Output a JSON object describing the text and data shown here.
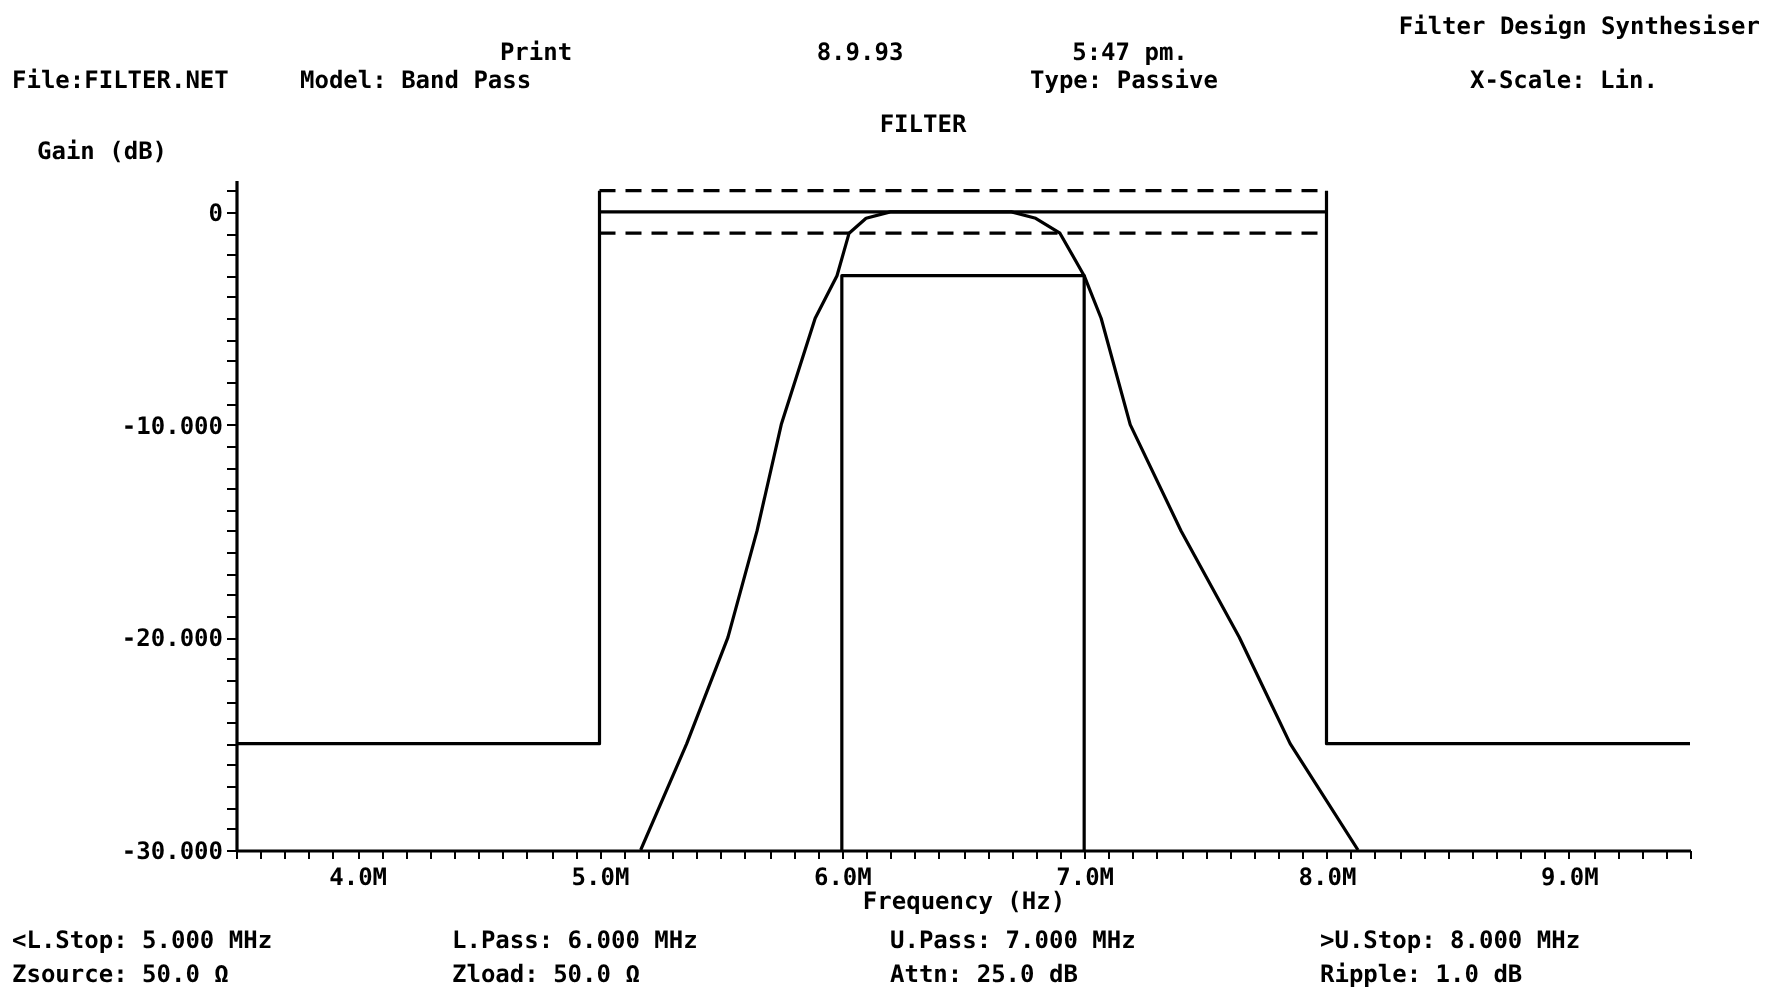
{
  "chart_data": {
    "type": "line",
    "title": "FILTER",
    "xlabel": "Frequency (Hz)",
    "ylabel": "Gain (dB)",
    "annotations": [
      "Filter Design Synthesiser",
      "Print",
      "8.9.93",
      "5:47 pm.",
      "File:FILTER.NET",
      "Model: Band Pass",
      "Type: Passive",
      "X-Scale: Lin.",
      "<L.Stop: 5.000 MHz",
      "L.Pass: 6.000 MHz",
      "U.Pass: 7.000 MHz",
      ">U.Stop: 8.000 MHz",
      "Zsource: 50.0 Ω",
      "Zload: 50.0 Ω",
      "Attn: 25.0 dB",
      "Ripple: 1.0 dB"
    ],
    "xlim": [
      3.5,
      9.5
    ],
    "ylim": [
      -30,
      1.5
    ],
    "xticks": [
      {
        "value": 3.5,
        "label": null
      },
      {
        "value": 3.6,
        "label": null
      },
      {
        "value": 3.7,
        "label": null
      },
      {
        "value": 3.8,
        "label": null
      },
      {
        "value": 3.9,
        "label": null
      },
      {
        "value": 4,
        "label": "4.0M"
      },
      {
        "value": 4.1,
        "label": null
      },
      {
        "value": 4.2,
        "label": null
      },
      {
        "value": 4.3,
        "label": null
      },
      {
        "value": 4.4,
        "label": null
      },
      {
        "value": 4.5,
        "label": null
      },
      {
        "value": 4.6,
        "label": null
      },
      {
        "value": 4.7,
        "label": null
      },
      {
        "value": 4.8,
        "label": null
      },
      {
        "value": 4.9,
        "label": null
      },
      {
        "value": 5,
        "label": "5.0M"
      },
      {
        "value": 5.1,
        "label": null
      },
      {
        "value": 5.2,
        "label": null
      },
      {
        "value": 5.3,
        "label": null
      },
      {
        "value": 5.4,
        "label": null
      },
      {
        "value": 5.5,
        "label": null
      },
      {
        "value": 5.6,
        "label": null
      },
      {
        "value": 5.7,
        "label": null
      },
      {
        "value": 5.8,
        "label": null
      },
      {
        "value": 5.9,
        "label": null
      },
      {
        "value": 6,
        "label": "6.0M"
      },
      {
        "value": 6.1,
        "label": null
      },
      {
        "value": 6.2,
        "label": null
      },
      {
        "value": 6.3,
        "label": null
      },
      {
        "value": 6.4,
        "label": null
      },
      {
        "value": 6.5,
        "label": null
      },
      {
        "value": 6.6,
        "label": null
      },
      {
        "value": 6.7,
        "label": null
      },
      {
        "value": 6.8,
        "label": null
      },
      {
        "value": 6.9,
        "label": null
      },
      {
        "value": 7,
        "label": "7.0M"
      },
      {
        "value": 7.1,
        "label": null
      },
      {
        "value": 7.2,
        "label": null
      },
      {
        "value": 7.3,
        "label": null
      },
      {
        "value": 7.4,
        "label": null
      },
      {
        "value": 7.5,
        "label": null
      },
      {
        "value": 7.6,
        "label": null
      },
      {
        "value": 7.7,
        "label": null
      },
      {
        "value": 7.8,
        "label": null
      },
      {
        "value": 7.9,
        "label": null
      },
      {
        "value": 8,
        "label": "8.0M"
      },
      {
        "value": 8.1,
        "label": null
      },
      {
        "value": 8.2,
        "label": null
      },
      {
        "value": 8.3,
        "label": null
      },
      {
        "value": 8.4,
        "label": null
      },
      {
        "value": 8.5,
        "label": null
      },
      {
        "value": 8.6,
        "label": null
      },
      {
        "value": 8.7,
        "label": null
      },
      {
        "value": 8.8,
        "label": null
      },
      {
        "value": 8.9,
        "label": null
      },
      {
        "value": 9,
        "label": "9.0M"
      },
      {
        "value": 9.1,
        "label": null
      },
      {
        "value": 9.2,
        "label": null
      },
      {
        "value": 9.3,
        "label": null
      },
      {
        "value": 9.4,
        "label": null
      },
      {
        "value": 9.5,
        "label": null
      }
    ],
    "yticks": [
      {
        "value": 1,
        "label": null
      },
      0,
      {
        "value": -1,
        "label": null
      },
      {
        "value": -2,
        "label": null
      },
      {
        "value": -3,
        "label": null
      },
      {
        "value": -4,
        "label": null
      },
      {
        "value": -5,
        "label": null
      },
      {
        "value": -6,
        "label": null
      },
      {
        "value": -7,
        "label": null
      },
      {
        "value": -8,
        "label": null
      },
      {
        "value": -9,
        "label": null
      },
      {
        "value": -10,
        "label": "-10.000"
      },
      {
        "value": -11,
        "label": null
      },
      {
        "value": -12,
        "label": null
      },
      {
        "value": -13,
        "label": null
      },
      {
        "value": -14,
        "label": null
      },
      {
        "value": -15,
        "label": null
      },
      {
        "value": -16,
        "label": null
      },
      {
        "value": -17,
        "label": null
      },
      {
        "value": -18,
        "label": null
      },
      {
        "value": -19,
        "label": null
      },
      {
        "value": -20,
        "label": "-20.000"
      },
      {
        "value": -21,
        "label": null
      },
      {
        "value": -22,
        "label": null
      },
      {
        "value": -23,
        "label": null
      },
      {
        "value": -24,
        "label": null
      },
      {
        "value": -25,
        "label": null
      },
      {
        "value": -26,
        "label": null
      },
      {
        "value": -27,
        "label": null
      },
      {
        "value": -28,
        "label": null
      },
      {
        "value": -29,
        "label": null
      },
      {
        "value": -30,
        "label": "-30.000"
      }
    ],
    "series": [
      {
        "color": "#000000",
        "x": [
          5.17,
          5.36,
          5.53,
          5.65,
          5.75,
          5.89,
          5.98,
          6.03,
          6.1,
          6.2,
          6.45,
          6.7,
          6.8,
          6.9,
          7.0,
          7.07,
          7.19,
          7.4,
          7.64,
          7.85,
          8.13
        ],
        "values": [
          -30,
          -25,
          -20,
          -15,
          -10,
          -5,
          -3,
          -1,
          -0.3,
          0,
          0,
          0,
          -0.3,
          -1,
          -3,
          -5,
          -10,
          -15,
          -20,
          -25,
          -30
        ]
      },
      {
        "color": "#000000",
        "x": [
          3.5,
          5,
          5
        ],
        "values": [
          -25,
          -25,
          1
        ]
      },
      {
        "color": "#000000",
        "x": [
          8,
          8,
          9.5
        ],
        "values": [
          1,
          -25,
          -25
        ]
      },
      {
        "color": "#000000",
        "x": [
          5,
          8
        ],
        "values": [
          0,
          0
        ]
      },
      {
        "color": "#000000",
        "x": [
          5,
          8
        ],
        "values": [
          1,
          1
        ],
        "line_style": "dashed"
      },
      {
        "color": "#000000",
        "x": [
          5,
          8
        ],
        "values": [
          -1,
          -1
        ],
        "line_style": "dashed"
      },
      {
        "color": "#000000",
        "x": [
          6,
          6,
          7,
          7
        ],
        "values": [
          -30,
          -3,
          -3,
          -30
        ]
      }
    ]
  }
}
